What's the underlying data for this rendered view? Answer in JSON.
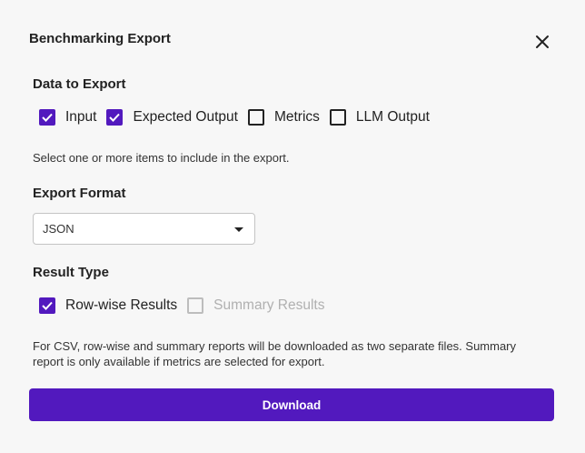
{
  "dialog": {
    "title": "Benchmarking Export",
    "close_icon": "close-icon"
  },
  "data_to_export": {
    "heading": "Data to Export",
    "options": [
      {
        "label": "Input",
        "checked": true
      },
      {
        "label": "Expected Output",
        "checked": true
      },
      {
        "label": "Metrics",
        "checked": false
      },
      {
        "label": "LLM Output",
        "checked": false
      }
    ],
    "helper": "Select one or more items to include in the export."
  },
  "export_format": {
    "heading": "Export Format",
    "selected": "JSON"
  },
  "result_type": {
    "heading": "Result Type",
    "options": [
      {
        "label": "Row-wise Results",
        "checked": true,
        "disabled": false
      },
      {
        "label": "Summary Results",
        "checked": false,
        "disabled": true
      }
    ],
    "note_line1": "For CSV, row-wise and summary reports will be downloaded as two separate files. Summary",
    "note_line2": "report is only available if metrics are selected for export."
  },
  "download_label": "Download",
  "colors": {
    "accent": "#5219be",
    "background": "#f7f7f7"
  }
}
